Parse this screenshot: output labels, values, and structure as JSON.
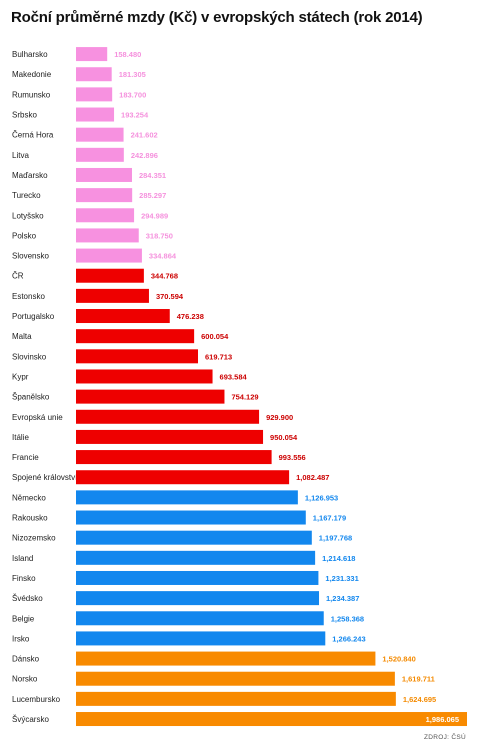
{
  "chart_data": {
    "type": "bar",
    "orientation": "horizontal",
    "title": "Roční průměrné mzdy (Kč) v evropských státech (rok 2014)",
    "source": "ZDROJ: ČSÚ",
    "colors": {
      "low": "#f791e0",
      "mid": "#ee0000",
      "high": "#1287ee",
      "top": "#f88a00"
    },
    "categories": [
      "Bulharsko",
      "Makedonie",
      "Rumunsko",
      "Srbsko",
      "Černá Hora",
      "Litva",
      "Maďarsko",
      "Turecko",
      "Lotyšsko",
      "Polsko",
      "Slovensko",
      "ČR",
      "Estonsko",
      "Portugalsko",
      "Malta",
      "Slovinsko",
      "Kypr",
      "Španělsko",
      "Evropská unie",
      "Itálie",
      "Francie",
      "Spojené království",
      "Německo",
      "Rakousko",
      "Nizozemsko",
      "Island",
      "Finsko",
      "Švédsko",
      "Belgie",
      "Irsko",
      "Dánsko",
      "Norsko",
      "Lucembursko",
      "Švýcarsko"
    ],
    "values": [
      158480,
      181305,
      183700,
      193254,
      241602,
      242896,
      284351,
      285297,
      294989,
      318750,
      334864,
      344768,
      370594,
      476238,
      600054,
      619713,
      693584,
      754129,
      929900,
      950054,
      993556,
      1082487,
      1126953,
      1167179,
      1197768,
      1214618,
      1231331,
      1234387,
      1258368,
      1266243,
      1520840,
      1619711,
      1624695,
      1986065
    ],
    "labels": [
      "158.480",
      "181.305",
      "183.700",
      "193.254",
      "241.602",
      "242.896",
      "284.351",
      "285.297",
      "294.989",
      "318.750",
      "334.864",
      "344.768",
      "370.594",
      "476.238",
      "600.054",
      "619.713",
      "693.584",
      "754.129",
      "929.900",
      "950.054",
      "993.556",
      "1,082.487",
      "1,126.953",
      "1,167.179",
      "1,197.768",
      "1,214.618",
      "1,231.331",
      "1,234.387",
      "1,258.368",
      "1,266.243",
      "1,520.840",
      "1,619.711",
      "1,624.695",
      "1,986.065"
    ],
    "groups": [
      "low",
      "low",
      "low",
      "low",
      "low",
      "low",
      "low",
      "low",
      "low",
      "low",
      "low",
      "mid",
      "mid",
      "mid",
      "mid",
      "mid",
      "mid",
      "mid",
      "mid",
      "mid",
      "mid",
      "mid",
      "high",
      "high",
      "high",
      "high",
      "high",
      "high",
      "high",
      "high",
      "top",
      "top",
      "top",
      "top"
    ]
  }
}
